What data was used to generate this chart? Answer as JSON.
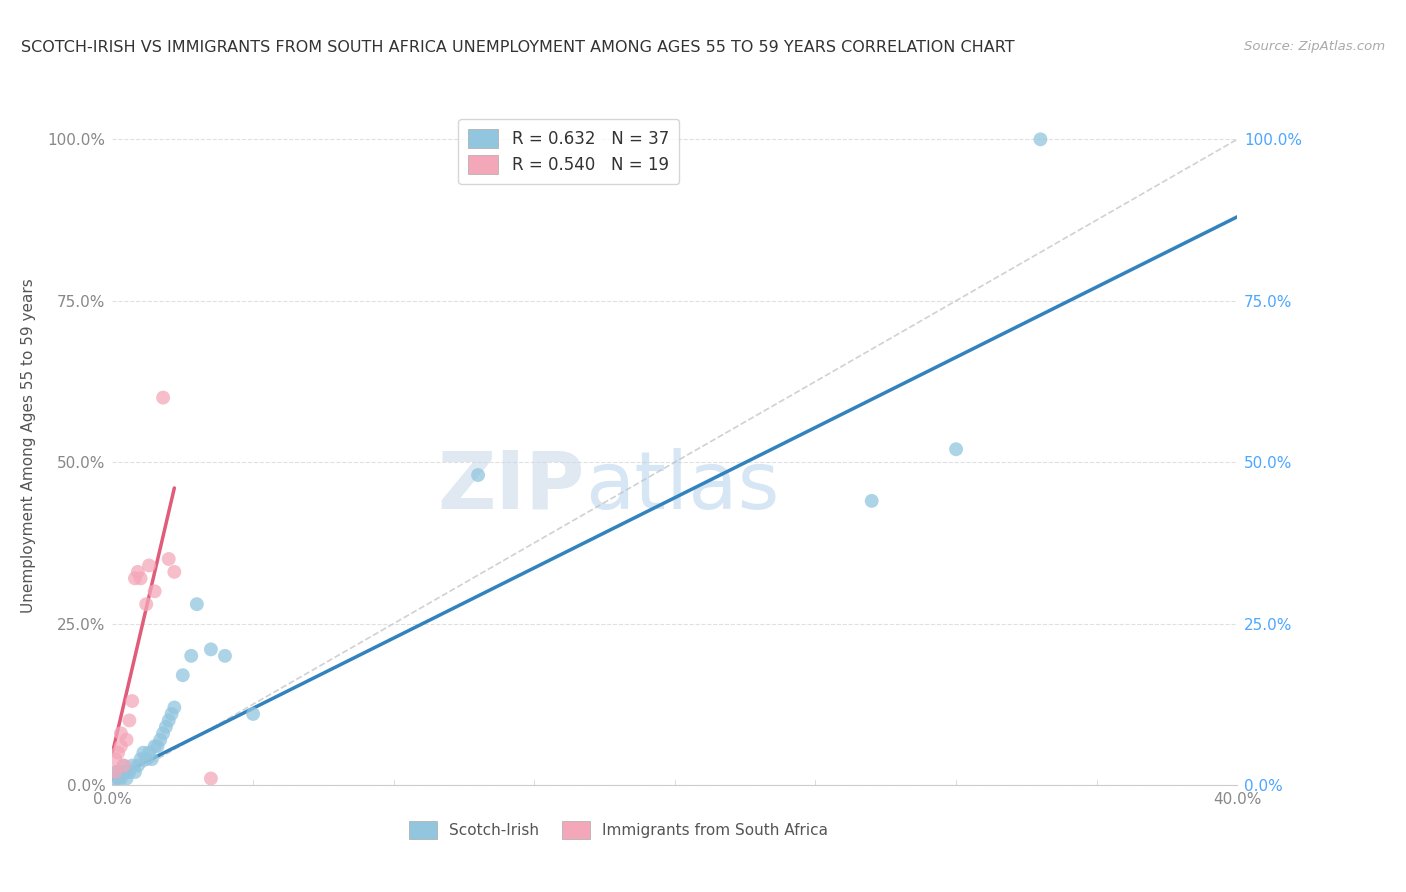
{
  "title": "SCOTCH-IRISH VS IMMIGRANTS FROM SOUTH AFRICA UNEMPLOYMENT AMONG AGES 55 TO 59 YEARS CORRELATION CHART",
  "source": "Source: ZipAtlas.com",
  "ylabel": "Unemployment Among Ages 55 to 59 years",
  "xlim": [
    0.0,
    0.4
  ],
  "ylim": [
    0.0,
    1.05
  ],
  "ytick_labels_left": [
    "0.0%",
    "25.0%",
    "50.0%",
    "75.0%",
    "100.0%"
  ],
  "ytick_labels_right": [
    "100.0%",
    "75.0%",
    "50.0%",
    "25.0%",
    "0.0%"
  ],
  "ytick_values": [
    0.0,
    0.25,
    0.5,
    0.75,
    1.0
  ],
  "xtick_values": [
    0.0,
    0.05,
    0.1,
    0.15,
    0.2,
    0.25,
    0.3,
    0.35,
    0.4
  ],
  "legend1_label": "R = 0.632   N = 37",
  "legend2_label": "R = 0.540   N = 19",
  "legend_series1": "Scotch-Irish",
  "legend_series2": "Immigrants from South Africa",
  "scatter_blue_x": [
    0.001,
    0.001,
    0.002,
    0.002,
    0.003,
    0.003,
    0.004,
    0.004,
    0.005,
    0.005,
    0.006,
    0.007,
    0.008,
    0.009,
    0.01,
    0.011,
    0.012,
    0.013,
    0.014,
    0.015,
    0.016,
    0.017,
    0.018,
    0.019,
    0.02,
    0.021,
    0.022,
    0.025,
    0.028,
    0.03,
    0.035,
    0.04,
    0.05,
    0.13,
    0.27,
    0.3,
    0.33
  ],
  "scatter_blue_y": [
    0.01,
    0.02,
    0.01,
    0.02,
    0.01,
    0.02,
    0.02,
    0.03,
    0.01,
    0.02,
    0.02,
    0.03,
    0.02,
    0.03,
    0.04,
    0.05,
    0.04,
    0.05,
    0.04,
    0.06,
    0.06,
    0.07,
    0.08,
    0.09,
    0.1,
    0.11,
    0.12,
    0.17,
    0.2,
    0.28,
    0.21,
    0.2,
    0.11,
    0.48,
    0.44,
    0.52,
    1.0
  ],
  "scatter_pink_x": [
    0.001,
    0.001,
    0.002,
    0.003,
    0.003,
    0.004,
    0.005,
    0.006,
    0.007,
    0.008,
    0.009,
    0.01,
    0.012,
    0.013,
    0.015,
    0.018,
    0.02,
    0.022,
    0.035
  ],
  "scatter_pink_y": [
    0.02,
    0.04,
    0.05,
    0.06,
    0.08,
    0.03,
    0.07,
    0.1,
    0.13,
    0.32,
    0.33,
    0.32,
    0.28,
    0.34,
    0.3,
    0.6,
    0.35,
    0.33,
    0.01
  ],
  "blue_line_x": [
    0.0,
    0.4
  ],
  "blue_line_y": [
    0.01,
    0.88
  ],
  "pink_line_x": [
    0.0,
    0.022
  ],
  "pink_line_y": [
    0.05,
    0.46
  ],
  "diag_line_x": [
    0.0,
    0.4
  ],
  "diag_line_y": [
    0.0,
    1.0
  ],
  "blue_color": "#92c5de",
  "pink_color": "#f4a7b9",
  "blue_line_color": "#3182bd",
  "pink_line_color": "#e05c7a",
  "diag_color": "#cccccc",
  "watermark_zip": "ZIP",
  "watermark_atlas": "atlas",
  "background_color": "#ffffff",
  "grid_color": "#e0e0e0",
  "title_color": "#333333",
  "axis_label_color": "#555555",
  "tick_color_blue": "#4da6ff",
  "tick_color_gray": "#888888"
}
